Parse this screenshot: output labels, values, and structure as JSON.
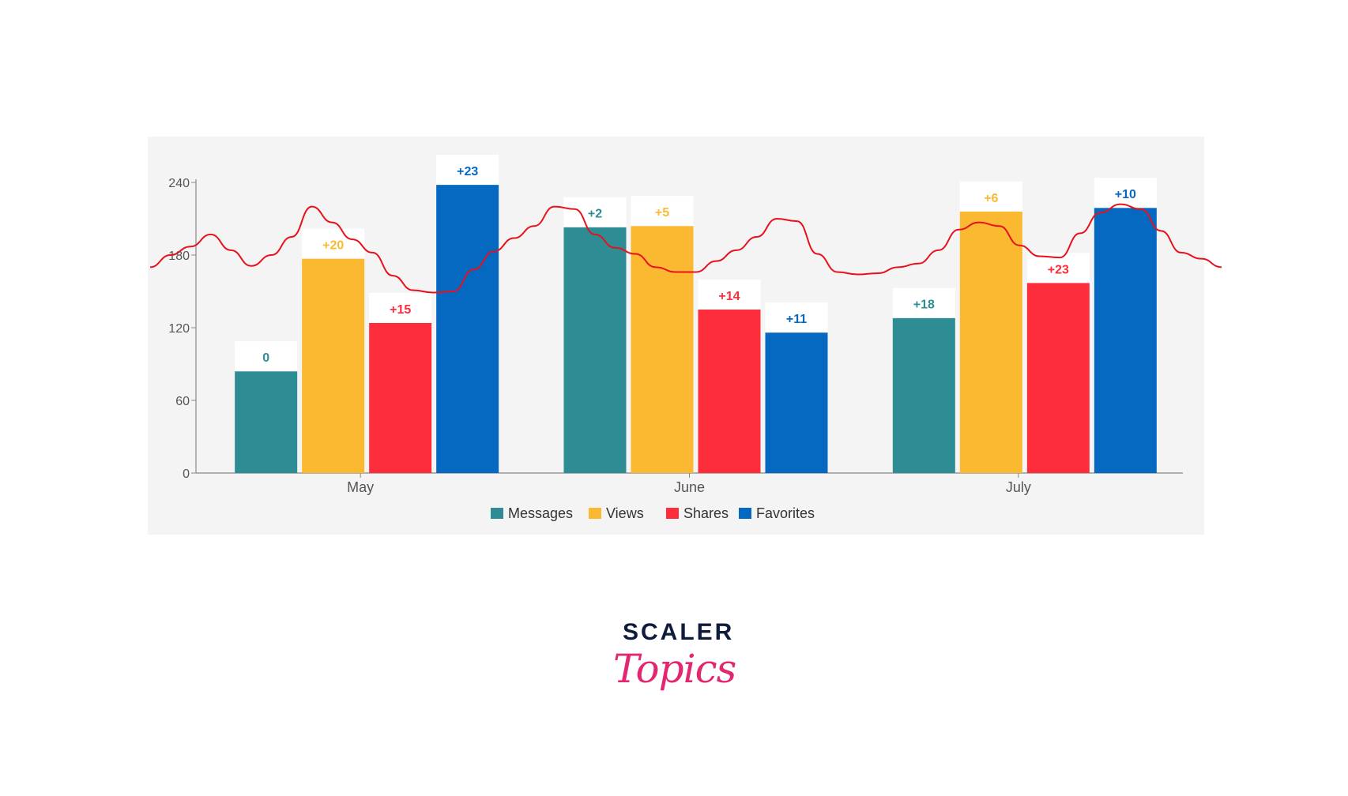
{
  "chart_data": {
    "type": "bar",
    "categories": [
      "May",
      "June",
      "July"
    ],
    "series": [
      {
        "name": "Messages",
        "color": "#2e8c94",
        "values": [
          84,
          203,
          128
        ],
        "labels": [
          "0",
          "+2",
          "+18"
        ]
      },
      {
        "name": "Views",
        "color": "#fbb931",
        "values": [
          177,
          204,
          216
        ],
        "labels": [
          "+20",
          "+5",
          "+6"
        ]
      },
      {
        "name": "Shares",
        "color": "#fd2d3c",
        "values": [
          124,
          135,
          157
        ],
        "labels": [
          "+15",
          "+14",
          "+23"
        ]
      },
      {
        "name": "Favorites",
        "color": "#0569c2",
        "values": [
          238,
          116,
          219
        ],
        "labels": [
          "+23",
          "+11",
          "+10"
        ]
      }
    ],
    "yticks": [
      0,
      60,
      120,
      180,
      240
    ],
    "ylim": [
      0,
      240
    ],
    "legend_position": "bottom",
    "grid": false,
    "overlay_line": {
      "color": "#e8101a",
      "description_values": [
        170,
        180,
        187,
        197,
        184,
        171,
        180,
        195,
        220,
        207,
        193,
        182,
        163,
        151,
        149,
        150,
        168,
        183,
        194,
        204,
        220,
        218,
        197,
        186,
        181,
        170,
        166,
        166,
        175,
        184,
        195,
        210,
        208,
        181,
        166,
        164,
        165,
        170,
        173,
        184,
        201,
        207,
        204,
        188,
        179,
        178,
        198,
        215,
        222,
        218,
        200,
        182,
        177,
        170
      ]
    }
  },
  "brand": {
    "line1": "SCALER",
    "line2": "Topics"
  }
}
